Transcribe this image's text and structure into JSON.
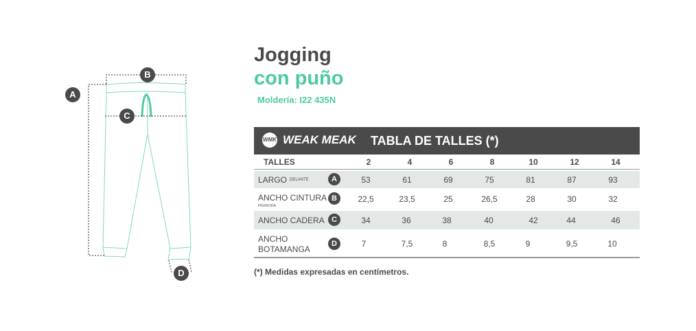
{
  "title_line1": "Jogging",
  "title_line2": "con puño",
  "molderia": "Moldería: I22 435N",
  "header": {
    "logo_mark": "WMK",
    "brand": "WEAK MEAK",
    "table_title": "TABLA DE TALLES (*)"
  },
  "table": {
    "size_header": "TALLES",
    "sizes": [
      "2",
      "4",
      "6",
      "8",
      "10",
      "12",
      "14"
    ],
    "rows": [
      {
        "label": "LARGO",
        "sublabel": "DELANTE",
        "badge": "A",
        "values": [
          "53",
          "61",
          "69",
          "75",
          "81",
          "87",
          "93"
        ]
      },
      {
        "label": "ANCHO CINTURA",
        "sublabel": "FRUNCIDA",
        "badge": "B",
        "values": [
          "22,5",
          "23,5",
          "25",
          "26,5",
          "28",
          "30",
          "32"
        ]
      },
      {
        "label": "ANCHO CADERA",
        "sublabel": "",
        "badge": "C",
        "values": [
          "34",
          "36",
          "38",
          "40",
          "42",
          "44",
          "46"
        ]
      },
      {
        "label": "ANCHO",
        "label2": "BOTAMANGA",
        "sublabel": "",
        "badge": "D",
        "values": [
          "7",
          "7,5",
          "8",
          "8,5",
          "9",
          "9,5",
          "10"
        ]
      }
    ]
  },
  "note": "(*) Medidas expresadas en centímetros.",
  "diagram": {
    "markers": [
      "A",
      "B",
      "C",
      "D"
    ]
  },
  "colors": {
    "accent": "#4fc9a4",
    "dark": "#4a4a4a",
    "band": "#e3e7e6"
  }
}
